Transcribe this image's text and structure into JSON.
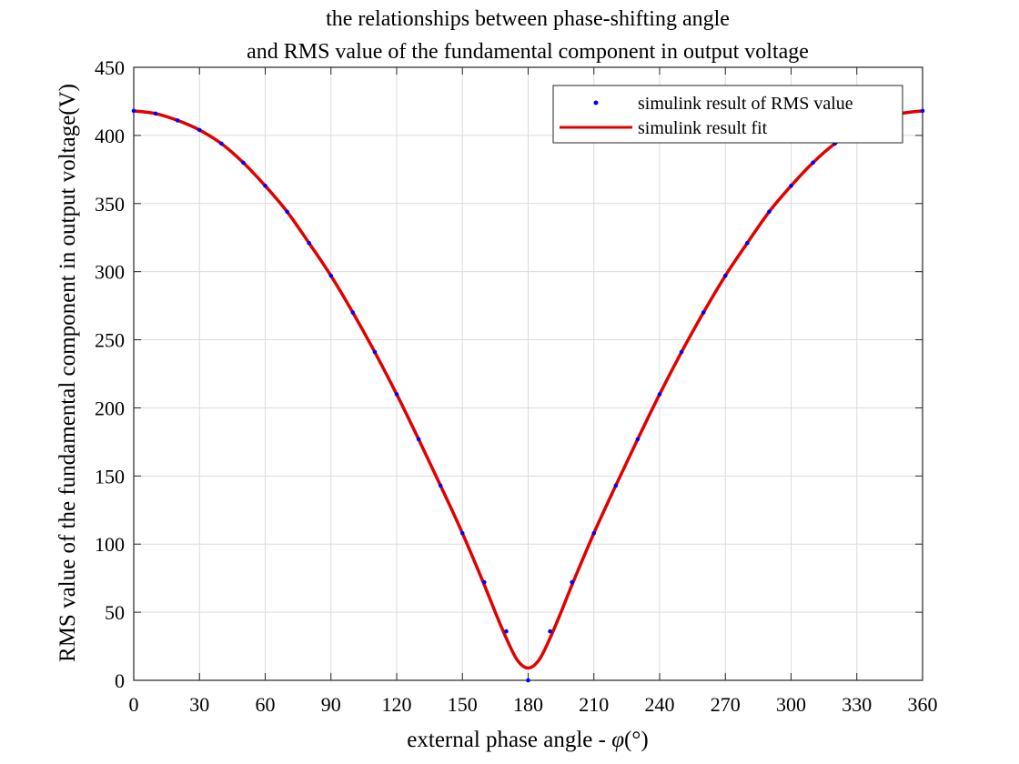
{
  "chart_data": {
    "type": "line",
    "title": [
      "the relationships between phase-shifting angle",
      "and RMS value of the fundamental component in output voltage"
    ],
    "xlabel_prefix": "external phase angle - ",
    "xlabel_symbol": "φ",
    "xlabel_suffix": "(°)",
    "ylabel": "RMS value of the fundamental component in output voltage(V)",
    "xlim": [
      0,
      360
    ],
    "ylim": [
      0,
      450
    ],
    "xticks": [
      0,
      30,
      60,
      90,
      120,
      150,
      180,
      210,
      240,
      270,
      300,
      330,
      360
    ],
    "yticks": [
      0,
      50,
      100,
      150,
      200,
      250,
      300,
      350,
      400,
      450
    ],
    "grid": true,
    "legend_position": "top-right",
    "colors": {
      "points": "#0000ff",
      "fit": "#e00000"
    },
    "series": [
      {
        "name": "simulink result of RMS value",
        "style": "points",
        "x": [
          0,
          10,
          20,
          30,
          40,
          50,
          60,
          70,
          80,
          90,
          100,
          110,
          120,
          130,
          140,
          150,
          160,
          170,
          180,
          190,
          200,
          210,
          220,
          230,
          240,
          250,
          260,
          270,
          280,
          290,
          300,
          310,
          320,
          330,
          340,
          350,
          360
        ],
        "y": [
          418,
          416,
          411,
          404,
          394,
          380,
          363,
          344,
          321,
          297,
          270,
          241,
          210,
          177,
          143,
          108,
          72,
          36,
          0,
          36,
          72,
          108,
          143,
          177,
          210,
          241,
          270,
          297,
          321,
          344,
          363,
          380,
          394,
          404,
          411,
          416,
          418
        ]
      },
      {
        "name": "simulink result fit",
        "style": "line",
        "x": [
          0,
          10,
          20,
          30,
          40,
          50,
          60,
          70,
          80,
          90,
          100,
          110,
          120,
          130,
          140,
          150,
          160,
          165,
          170,
          175,
          180,
          185,
          190,
          195,
          200,
          210,
          220,
          230,
          240,
          250,
          260,
          270,
          280,
          290,
          300,
          310,
          320,
          330,
          340,
          350,
          360
        ],
        "y": [
          418,
          416,
          411,
          404,
          394,
          380,
          363,
          344,
          321,
          297,
          270,
          241,
          210,
          177,
          143,
          108,
          70,
          50,
          31,
          15,
          9,
          15,
          31,
          50,
          70,
          108,
          143,
          177,
          210,
          241,
          270,
          297,
          321,
          344,
          363,
          380,
          394,
          404,
          411,
          416,
          418
        ]
      }
    ]
  }
}
